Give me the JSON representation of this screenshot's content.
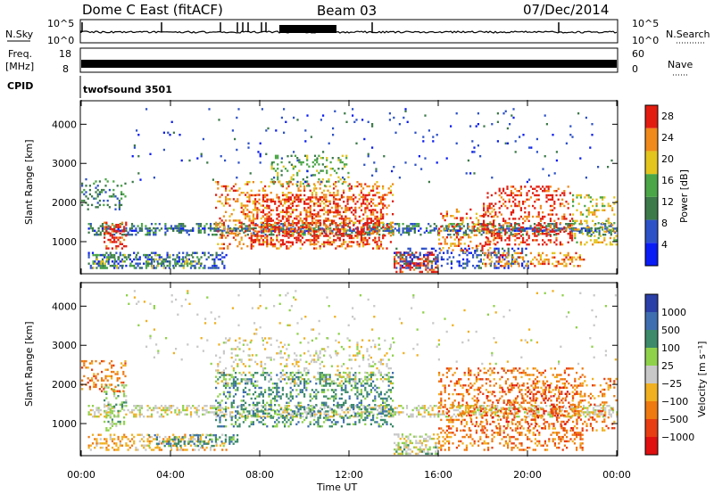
{
  "header": {
    "station": "Dome C East (fitACF)",
    "beam": "Beam 03",
    "date": "07/Dec/2014"
  },
  "panels": {
    "nsky_label": "N.Sky",
    "nsearch_label": "N.Search",
    "freq_label_1": "Freq.",
    "freq_label_2": "[MHz]",
    "nave_label": "Nave",
    "cpid_label": "CPID",
    "cpid_value": "twofsound 3501",
    "nsky_ticks": [
      "10^5",
      "10^0"
    ],
    "nsearch_ticks": [
      "10^5",
      "10^0"
    ],
    "freq_ticks": [
      "18",
      "8"
    ],
    "nave_ticks": [
      "60",
      "0"
    ]
  },
  "chart_data": [
    {
      "type": "heatmap",
      "name": "power",
      "ylabel": "Slant Range [km]",
      "xlabel": "Time UT",
      "x_ticks": [
        "00:00",
        "04:00",
        "08:00",
        "12:00",
        "16:00",
        "20:00",
        "00:00"
      ],
      "y_ticks": [
        1000,
        2000,
        3000,
        4000
      ],
      "ylim": [
        180,
        4600
      ],
      "xlim_hours": [
        0,
        24
      ],
      "colorbar_label": "Power [dB]",
      "colorbar_ticks": [
        "4",
        "8",
        "12",
        "16",
        "20",
        "24",
        "28"
      ],
      "colorbar_colors": [
        "#0a1cf5",
        "#2d52c8",
        "#3c7a4a",
        "#4aa646",
        "#e3c51e",
        "#f08a1a",
        "#e21d10"
      ]
    },
    {
      "type": "heatmap",
      "name": "velocity",
      "ylabel": "Slant Range [km]",
      "xlabel": "Time UT",
      "x_ticks": [
        "00:00",
        "04:00",
        "08:00",
        "12:00",
        "16:00",
        "20:00",
        "00:00"
      ],
      "y_ticks": [
        1000,
        2000,
        3000,
        4000
      ],
      "ylim": [
        180,
        4600
      ],
      "xlim_hours": [
        0,
        24
      ],
      "colorbar_label": "Velocity [m s⁻¹]",
      "colorbar_ticks": [
        "1000",
        "500",
        "100",
        "25",
        "−25",
        "−100",
        "−500",
        "−1000"
      ],
      "colorbar_colors": [
        "#2b3fa8",
        "#3f6eb0",
        "#3c8a6a",
        "#8fd24a",
        "#c8c8c8",
        "#f0b020",
        "#ee7a10",
        "#e83d12",
        "#e01010"
      ]
    }
  ],
  "data_regions_power": [
    {
      "t0": 0.3,
      "t1": 24,
      "r0": 1150,
      "r1": 1450,
      "c": 2,
      "d": 0.35
    },
    {
      "t0": 0.3,
      "t1": 24,
      "r0": 1250,
      "r1": 1350,
      "c": 1,
      "d": 0.5
    },
    {
      "t0": 0.3,
      "t1": 6.5,
      "r0": 300,
      "r1": 700,
      "c": 1,
      "d": 0.35
    },
    {
      "t0": 0.5,
      "t1": 5.5,
      "r0": 300,
      "r1": 650,
      "c": 3,
      "d": 0.25
    },
    {
      "t0": 1.0,
      "t1": 2.0,
      "r0": 800,
      "r1": 1500,
      "c": 6,
      "d": 0.4
    },
    {
      "t0": 6.0,
      "t1": 14.0,
      "r0": 800,
      "r1": 2500,
      "c": 5,
      "d": 0.25
    },
    {
      "t0": 7.5,
      "t1": 13.5,
      "r0": 900,
      "r1": 2200,
      "c": 6,
      "d": 0.3
    },
    {
      "t0": 8.5,
      "t1": 12.0,
      "r0": 2400,
      "r1": 3200,
      "c": 3,
      "d": 0.2
    },
    {
      "t0": 14.0,
      "t1": 16.0,
      "r0": 200,
      "r1": 700,
      "c": 6,
      "d": 0.5
    },
    {
      "t0": 14.0,
      "t1": 20.0,
      "r0": 300,
      "r1": 800,
      "c": 1,
      "d": 0.3
    },
    {
      "t0": 16.0,
      "t1": 18.5,
      "r0": 700,
      "r1": 1800,
      "c": 5,
      "d": 0.25
    },
    {
      "t0": 18.0,
      "t1": 22.0,
      "r0": 900,
      "r1": 2400,
      "c": 6,
      "d": 0.28
    },
    {
      "t0": 18.0,
      "t1": 22.5,
      "r0": 350,
      "r1": 700,
      "c": 5,
      "d": 0.35
    },
    {
      "t0": 0.0,
      "t1": 2.0,
      "r0": 1800,
      "r1": 2600,
      "c": 2,
      "d": 0.25
    },
    {
      "t0": 22.0,
      "t1": 24.0,
      "r0": 900,
      "r1": 2200,
      "c": 4,
      "d": 0.2
    },
    {
      "t0": 2.0,
      "t1": 24.0,
      "r0": 2500,
      "r1": 4400,
      "c": 1,
      "d": 0.02
    }
  ],
  "data_regions_velocity": [
    {
      "t0": 0.3,
      "t1": 24,
      "r0": 1150,
      "r1": 1450,
      "c": 4,
      "d": 0.4
    },
    {
      "t0": 0.3,
      "t1": 6.5,
      "r0": 300,
      "r1": 700,
      "c": 3,
      "d": 0.35
    },
    {
      "t0": 3.0,
      "t1": 7.0,
      "r0": 400,
      "r1": 700,
      "c": 6,
      "d": 0.35
    },
    {
      "t0": 1.0,
      "t1": 2.0,
      "r0": 800,
      "r1": 2000,
      "c": 5,
      "d": 0.3
    },
    {
      "t0": 6.0,
      "t1": 14.0,
      "r0": 900,
      "r1": 2300,
      "c": 6,
      "d": 0.3
    },
    {
      "t0": 6.0,
      "t1": 14.0,
      "r0": 2000,
      "r1": 3200,
      "c": 4,
      "d": 0.15
    },
    {
      "t0": 14.0,
      "t1": 16.0,
      "r0": 200,
      "r1": 700,
      "c": 4,
      "d": 0.35
    },
    {
      "t0": 14.0,
      "t1": 16.0,
      "r0": 200,
      "r1": 500,
      "c": 5,
      "d": 0.25
    },
    {
      "t0": 16.0,
      "t1": 22.5,
      "r0": 300,
      "r1": 2400,
      "c": 2,
      "d": 0.25
    },
    {
      "t0": 17.0,
      "t1": 22.0,
      "r0": 800,
      "r1": 2000,
      "c": 1,
      "d": 0.15
    },
    {
      "t0": 0.0,
      "t1": 2.0,
      "r0": 1800,
      "r1": 2600,
      "c": 2,
      "d": 0.25
    },
    {
      "t0": 22.0,
      "t1": 24.0,
      "r0": 800,
      "r1": 2200,
      "c": 2,
      "d": 0.2
    },
    {
      "t0": 2.0,
      "t1": 24.0,
      "r0": 2500,
      "r1": 4400,
      "c": 4,
      "d": 0.02
    }
  ]
}
